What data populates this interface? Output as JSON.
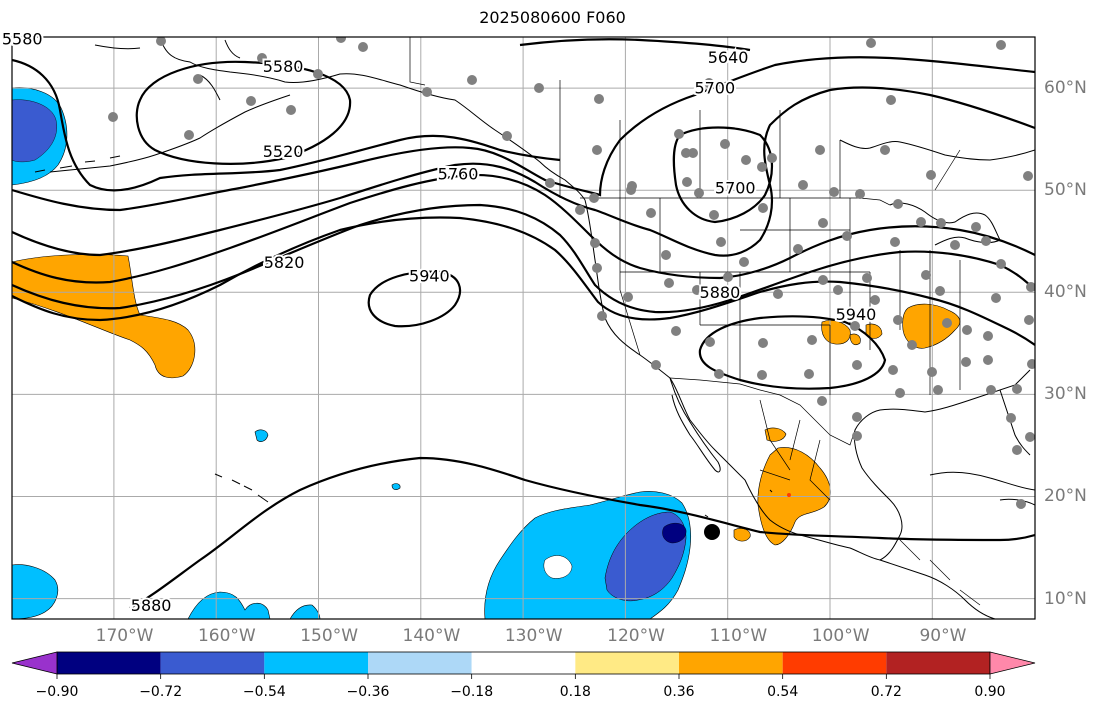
{
  "figure": {
    "title": "2025080600 F060"
  },
  "map": {
    "projection": "PlateCarree",
    "lon_range_degE": [
      -181,
      -81
    ],
    "lat_range_degN": [
      8,
      65
    ],
    "gridlines": true,
    "lon_ticks": [
      {
        "lon": -170,
        "label": "170°W"
      },
      {
        "lon": -160,
        "label": "160°W"
      },
      {
        "lon": -150,
        "label": "150°W"
      },
      {
        "lon": -140,
        "label": "140°W"
      },
      {
        "lon": -130,
        "label": "130°W"
      },
      {
        "lon": -120,
        "label": "120°W"
      },
      {
        "lon": -110,
        "label": "110°W"
      },
      {
        "lon": -100,
        "label": "100°W"
      },
      {
        "lon": -90,
        "label": "90°W"
      }
    ],
    "lat_ticks": [
      {
        "lat": 60,
        "label": "60°N"
      },
      {
        "lat": 50,
        "label": "50°N"
      },
      {
        "lat": 40,
        "label": "40°N"
      },
      {
        "lat": 30,
        "label": "30°N"
      },
      {
        "lat": 20,
        "label": "20°N"
      },
      {
        "lat": 10,
        "label": "10°N"
      }
    ],
    "contour_labels": [
      {
        "text": "5580",
        "lon": -180,
        "lat": 64.7
      },
      {
        "text": "5580",
        "lon": -154.5,
        "lat": 62.0
      },
      {
        "text": "5520",
        "lon": -154.5,
        "lat": 53.7
      },
      {
        "text": "5640",
        "lon": -111.0,
        "lat": 62.9
      },
      {
        "text": "5700",
        "lon": -112.3,
        "lat": 59.9
      },
      {
        "text": "5760",
        "lon": -137.4,
        "lat": 51.5
      },
      {
        "text": "5700",
        "lon": -110.3,
        "lat": 50.1
      },
      {
        "text": "5820",
        "lon": -154.4,
        "lat": 42.8
      },
      {
        "text": "5940",
        "lon": -140.2,
        "lat": 41.5
      },
      {
        "text": "5880",
        "lon": -111.8,
        "lat": 39.9
      },
      {
        "text": "5940",
        "lon": -98.5,
        "lat": 37.7
      },
      {
        "text": "5880",
        "lon": -167.4,
        "lat": 9.2
      }
    ],
    "storm_center": {
      "lon": -111.5,
      "lat": 16.5
    },
    "colors": {
      "contour": "#000000",
      "gridline": "#aaaaaa",
      "station_dot": "#808080",
      "land_outline": "#000000"
    }
  },
  "colorbar": {
    "orientation": "horizontal",
    "extend": "both",
    "levels": [
      -1.08,
      -0.9,
      -0.72,
      -0.54,
      -0.36,
      -0.18,
      0.18,
      0.36,
      0.54,
      0.72,
      0.9,
      1.08
    ],
    "colors": [
      "#9932cc",
      "#000080",
      "#3a5bd0",
      "#00bfff",
      "#add8f7",
      "#ffffff",
      "#ffea85",
      "#ffa500",
      "#ff3c00",
      "#b22222",
      "#ff88aa"
    ],
    "tick_labels": [
      {
        "value": -0.9,
        "label": "−0.90"
      },
      {
        "value": -0.72,
        "label": "−0.72"
      },
      {
        "value": -0.54,
        "label": "−0.54"
      },
      {
        "value": -0.36,
        "label": "−0.36"
      },
      {
        "value": -0.18,
        "label": "−0.18"
      },
      {
        "value": 0.18,
        "label": "0.18"
      },
      {
        "value": 0.36,
        "label": "0.36"
      },
      {
        "value": 0.54,
        "label": "0.54"
      },
      {
        "value": 0.72,
        "label": "0.72"
      },
      {
        "value": 0.9,
        "label": "0.90"
      }
    ]
  }
}
